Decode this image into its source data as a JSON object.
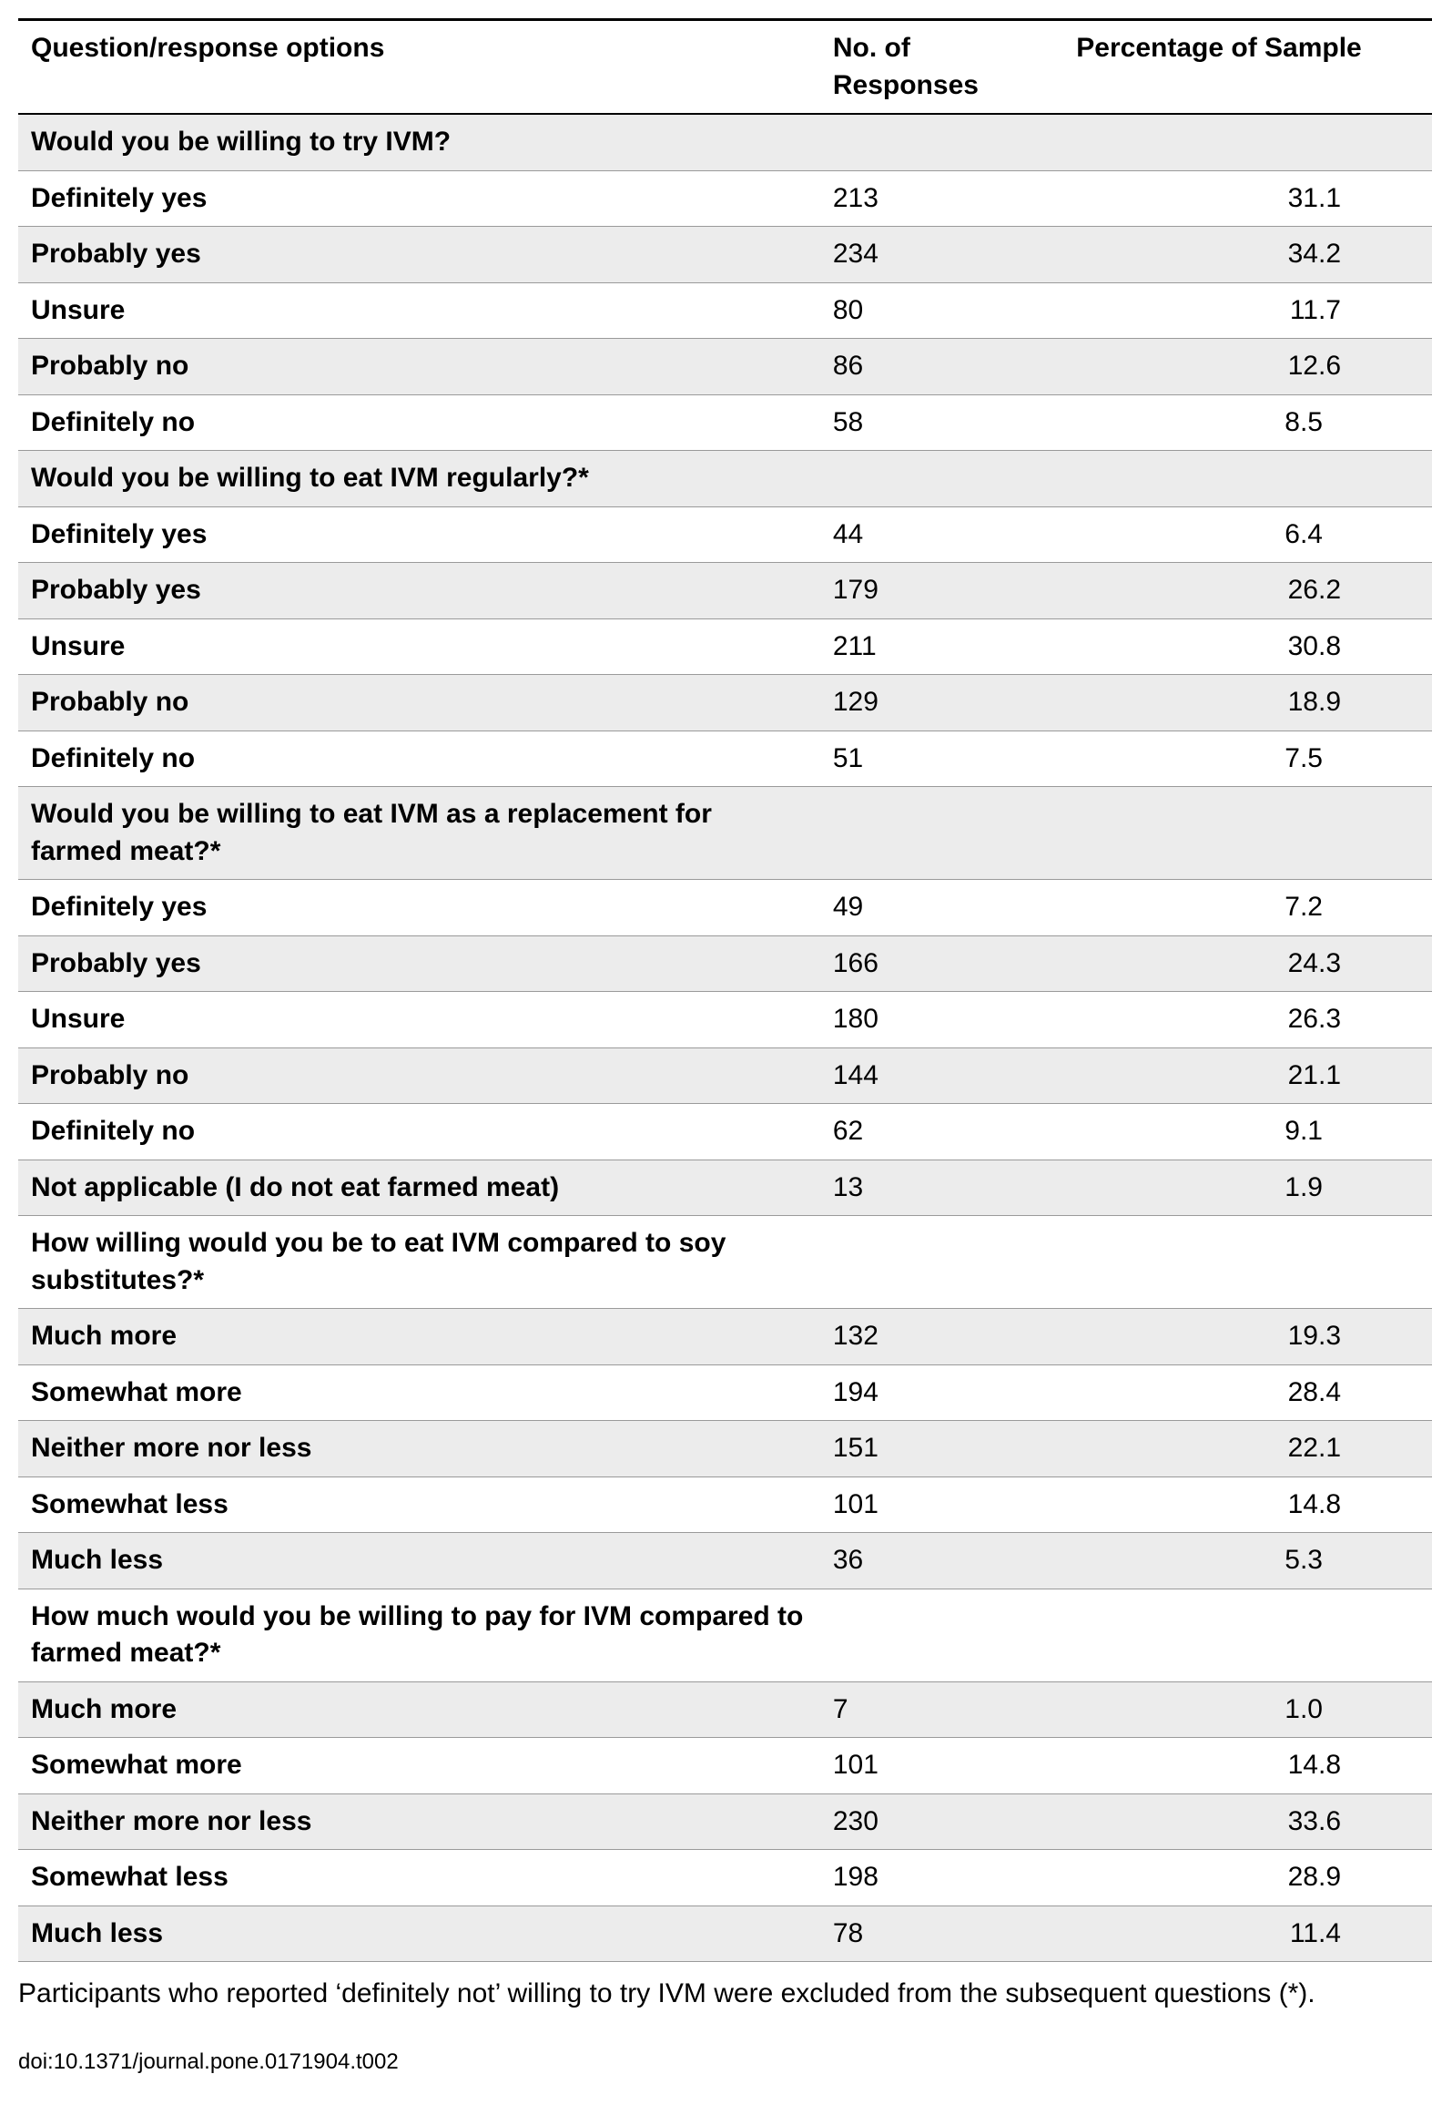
{
  "table": {
    "background_color": "#ffffff",
    "shade_color": "#ececec",
    "border_color": "#9a9a9a",
    "header_border_color": "#000000",
    "font_family": "Arial",
    "font_size_pt": 22,
    "columns": [
      {
        "label": "Question/response options",
        "width_pct": 56
      },
      {
        "label": "No. of Responses",
        "width_pct": 17
      },
      {
        "label": "Percentage of Sample",
        "width_pct": 27
      }
    ],
    "rows": [
      {
        "label": "Would you be willing to try IVM?",
        "responses": "",
        "percentage": "",
        "is_question": true,
        "shaded": true
      },
      {
        "label": "Definitely yes",
        "responses": "213",
        "percentage": "31.1",
        "is_question": false,
        "shaded": false
      },
      {
        "label": "Probably yes",
        "responses": "234",
        "percentage": "34.2",
        "is_question": false,
        "shaded": true
      },
      {
        "label": "Unsure",
        "responses": "80",
        "percentage": "11.7",
        "is_question": false,
        "shaded": false
      },
      {
        "label": "Probably no",
        "responses": "86",
        "percentage": "12.6",
        "is_question": false,
        "shaded": true
      },
      {
        "label": "Definitely no",
        "responses": "58",
        "percentage": "8.5",
        "is_question": false,
        "shaded": false,
        "pct_wide": true
      },
      {
        "label": "Would you be willing to eat IVM regularly?*",
        "responses": "",
        "percentage": "",
        "is_question": true,
        "shaded": true
      },
      {
        "label": "Definitely yes",
        "responses": "44",
        "percentage": "6.4",
        "is_question": false,
        "shaded": false,
        "pct_wide": true
      },
      {
        "label": "Probably yes",
        "responses": "179",
        "percentage": "26.2",
        "is_question": false,
        "shaded": true
      },
      {
        "label": "Unsure",
        "responses": "211",
        "percentage": "30.8",
        "is_question": false,
        "shaded": false
      },
      {
        "label": "Probably no",
        "responses": "129",
        "percentage": "18.9",
        "is_question": false,
        "shaded": true
      },
      {
        "label": "Definitely no",
        "responses": "51",
        "percentage": "7.5",
        "is_question": false,
        "shaded": false,
        "pct_wide": true
      },
      {
        "label": "Would you be willing to eat IVM as a replacement for farmed meat?*",
        "responses": "",
        "percentage": "",
        "is_question": true,
        "shaded": true
      },
      {
        "label": "Definitely yes",
        "responses": "49",
        "percentage": "7.2",
        "is_question": false,
        "shaded": false,
        "pct_wide": true
      },
      {
        "label": "Probably yes",
        "responses": "166",
        "percentage": "24.3",
        "is_question": false,
        "shaded": true
      },
      {
        "label": "Unsure",
        "responses": "180",
        "percentage": "26.3",
        "is_question": false,
        "shaded": false
      },
      {
        "label": "Probably no",
        "responses": "144",
        "percentage": "21.1",
        "is_question": false,
        "shaded": true
      },
      {
        "label": "Definitely no",
        "responses": "62",
        "percentage": "9.1",
        "is_question": false,
        "shaded": false,
        "pct_wide": true
      },
      {
        "label": "Not applicable (I do not eat farmed meat)",
        "responses": "13",
        "percentage": "1.9",
        "is_question": false,
        "shaded": true,
        "pct_wide": true
      },
      {
        "label": "How willing would you be to eat IVM compared to soy substitutes?*",
        "responses": "",
        "percentage": "",
        "is_question": true,
        "shaded": false
      },
      {
        "label": "Much more",
        "responses": "132",
        "percentage": "19.3",
        "is_question": false,
        "shaded": true
      },
      {
        "label": "Somewhat more",
        "responses": "194",
        "percentage": "28.4",
        "is_question": false,
        "shaded": false
      },
      {
        "label": "Neither more nor less",
        "responses": "151",
        "percentage": "22.1",
        "is_question": false,
        "shaded": true
      },
      {
        "label": "Somewhat less",
        "responses": "101",
        "percentage": "14.8",
        "is_question": false,
        "shaded": false
      },
      {
        "label": "Much less",
        "responses": "36",
        "percentage": "5.3",
        "is_question": false,
        "shaded": true,
        "pct_wide": true
      },
      {
        "label": "How much would you be willing to pay for IVM compared to farmed meat?*",
        "responses": "",
        "percentage": "",
        "is_question": true,
        "shaded": false
      },
      {
        "label": "Much more",
        "responses": "7",
        "percentage": "1.0",
        "is_question": false,
        "shaded": true,
        "pct_wide": true
      },
      {
        "label": "Somewhat more",
        "responses": "101",
        "percentage": "14.8",
        "is_question": false,
        "shaded": false
      },
      {
        "label": "Neither more nor less",
        "responses": "230",
        "percentage": "33.6",
        "is_question": false,
        "shaded": true
      },
      {
        "label": "Somewhat less",
        "responses": "198",
        "percentage": "28.9",
        "is_question": false,
        "shaded": false
      },
      {
        "label": "Much less",
        "responses": "78",
        "percentage": "11.4",
        "is_question": false,
        "shaded": true
      }
    ]
  },
  "footnote": "Participants who reported ‘definitely not’ willing to try IVM were excluded from the subsequent questions (*).",
  "doi": "doi:10.1371/journal.pone.0171904.t002"
}
